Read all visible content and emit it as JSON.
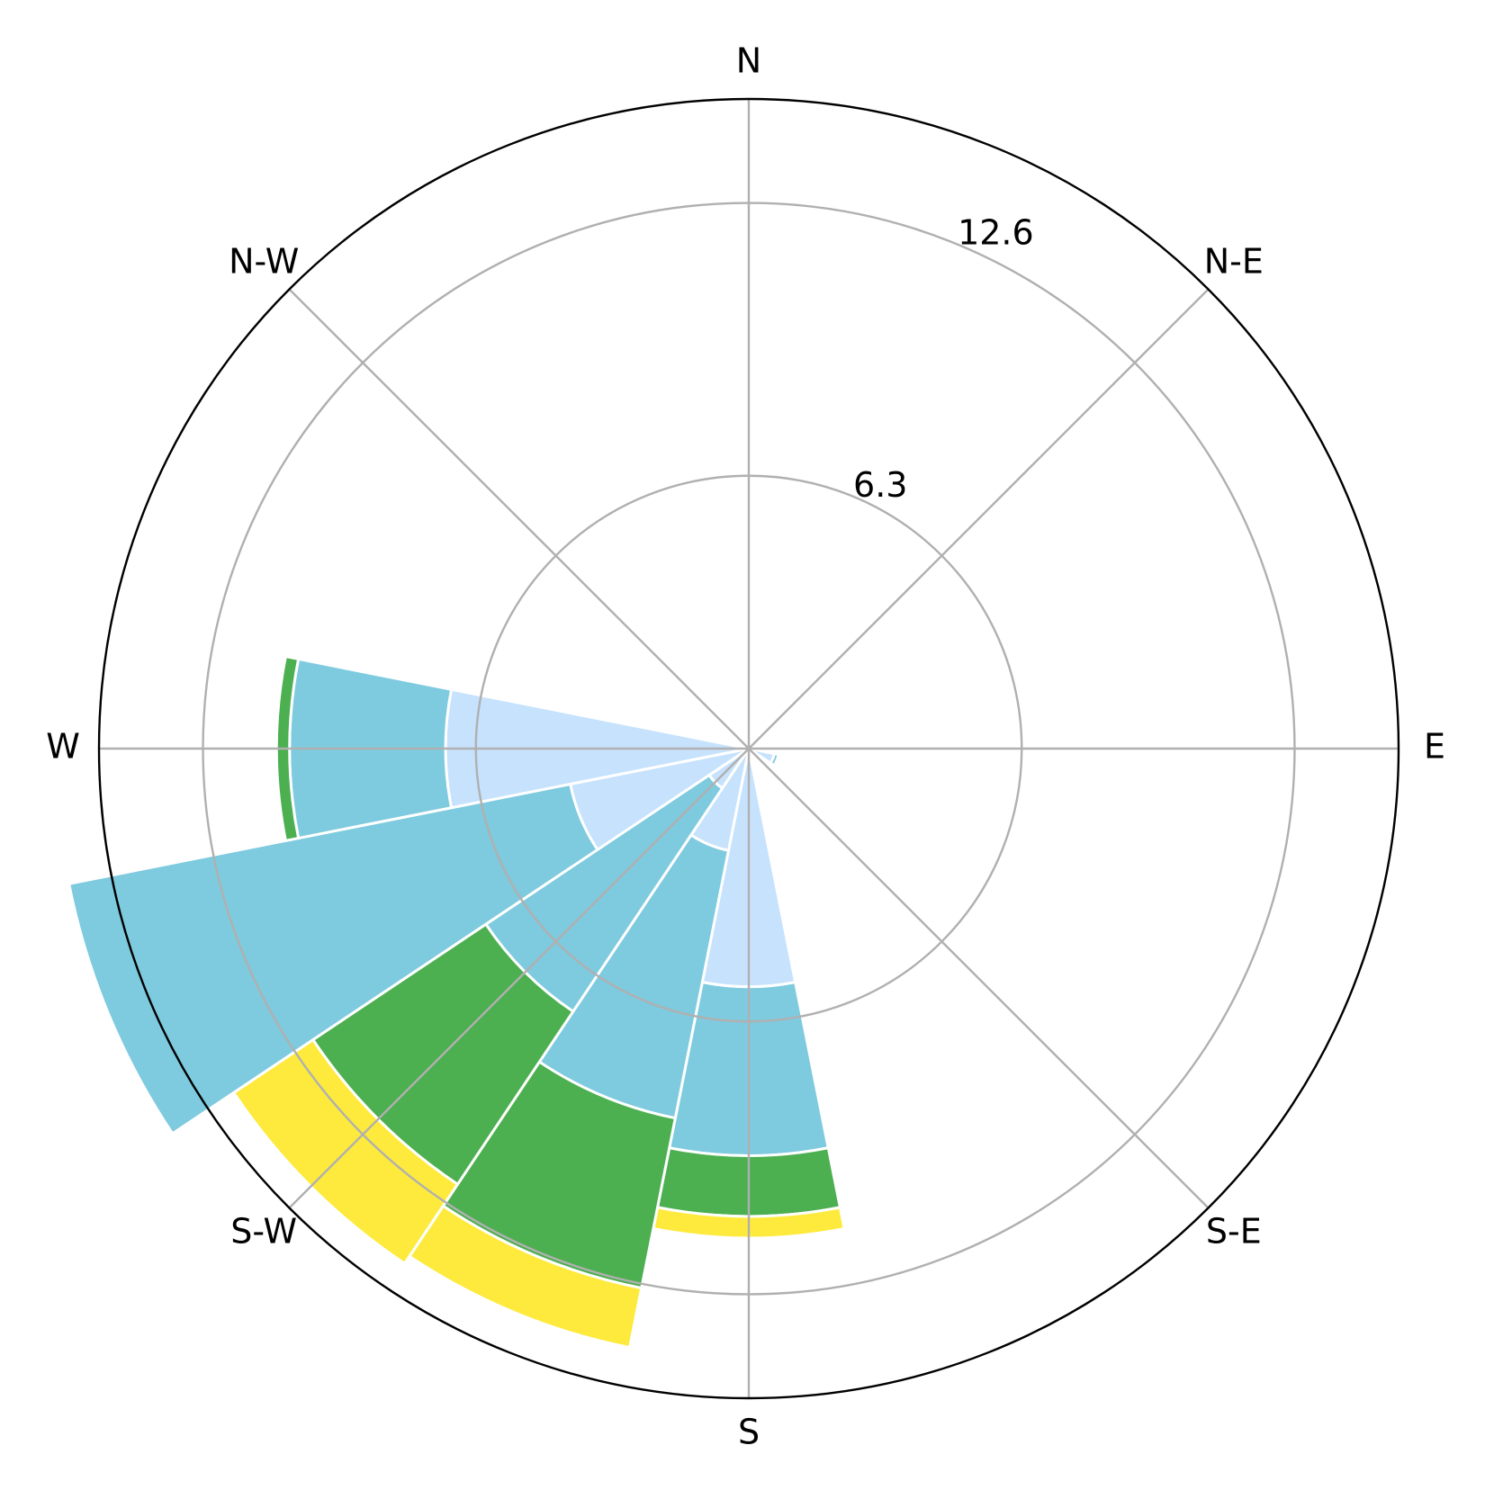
{
  "chart_data": {
    "type": "windrose",
    "title": "",
    "direction_labels": {
      "north": "N",
      "north_east": "N-E",
      "east": "E",
      "south_east": "S-E",
      "south": "S",
      "south_west": "S-W",
      "west": "W",
      "north_west": "N-W"
    },
    "radial_ticks": [
      {
        "value": 6.3,
        "label": "6.3"
      },
      {
        "value": 12.6,
        "label": "12.6"
      }
    ],
    "rmax": 15,
    "grid": true,
    "sector_width_deg": 22.5,
    "bin_colors": [
      "#c6e2fd",
      "#7ecadf",
      "#4caf50",
      "#fdea3c"
    ],
    "sectors": [
      {
        "direction_deg": 112.5,
        "stacks": [
          0.6,
          0.1
        ]
      },
      {
        "direction_deg": 180,
        "stacks": [
          5.5,
          3.9,
          1.4,
          0.5
        ]
      },
      {
        "direction_deg": 202.5,
        "stacks": [
          2.4,
          6.3,
          4.0,
          1.4
        ]
      },
      {
        "direction_deg": 225,
        "stacks": [
          1.1,
          6.2,
          4.8,
          2.2
        ]
      },
      {
        "direction_deg": 247.5,
        "stacks": [
          4.2,
          11.8,
          0,
          0
        ]
      },
      {
        "direction_deg": 270,
        "stacks": [
          7.0,
          3.6,
          0.3
        ]
      }
    ]
  }
}
